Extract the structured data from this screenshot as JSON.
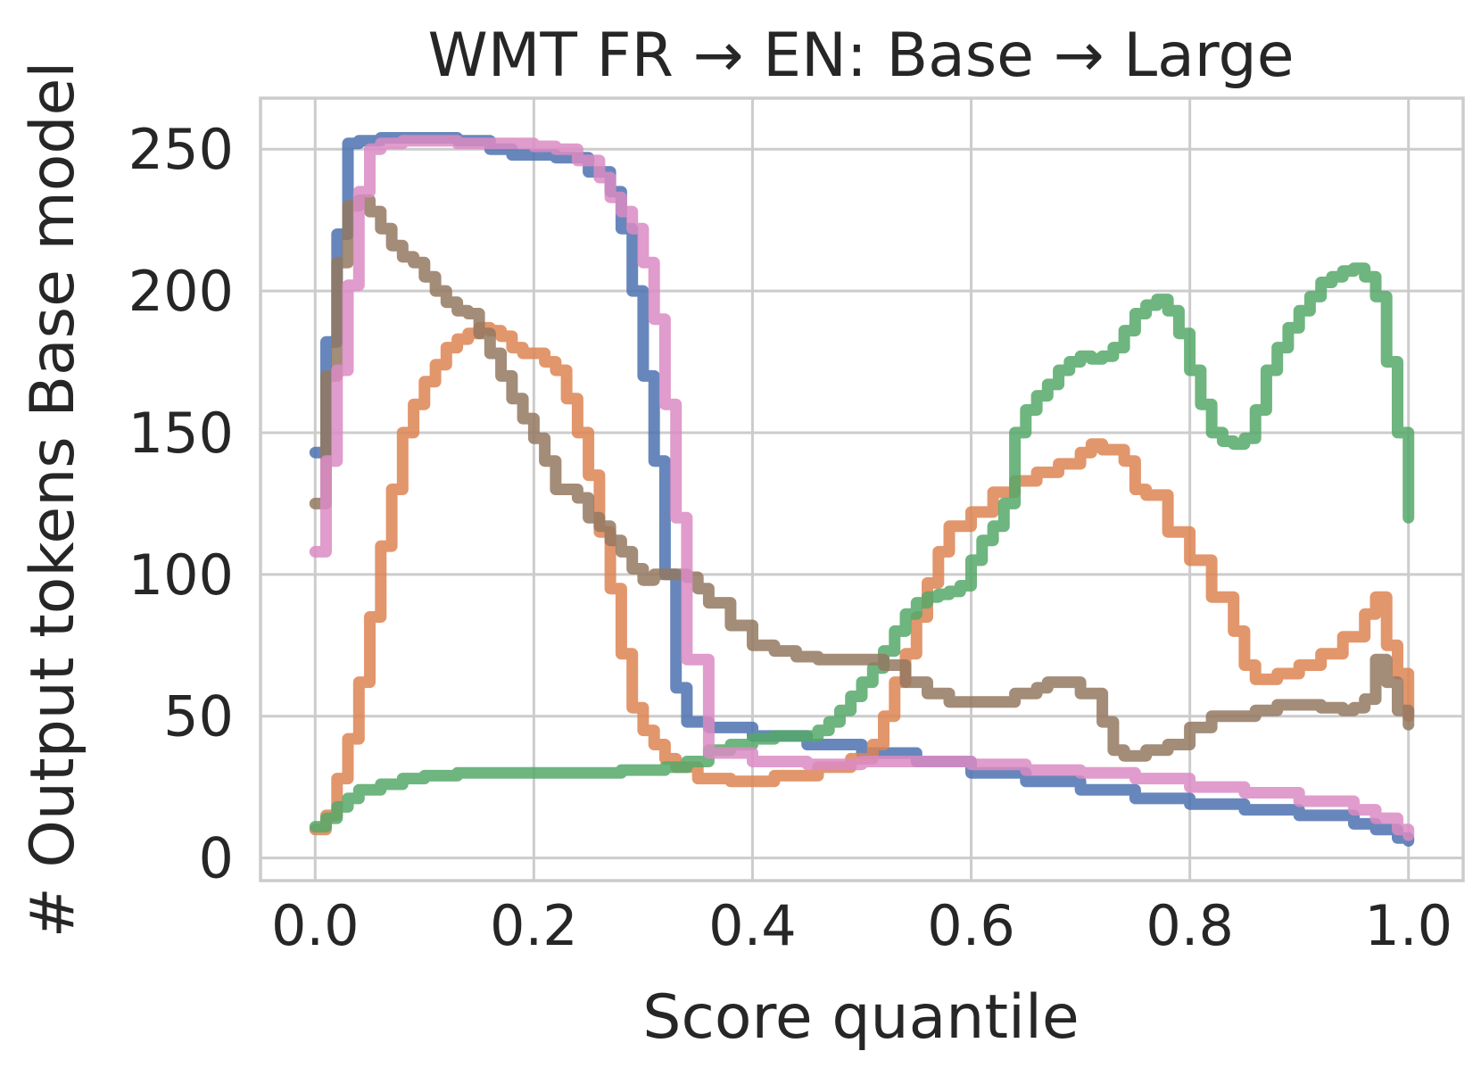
{
  "chart_data": {
    "type": "line",
    "title": "WMT FR → EN:  Base → Large",
    "xlabel": "Score quantile",
    "ylabel": "# Output tokens Base model",
    "xlim": [
      -0.05,
      1.05
    ],
    "ylim": [
      -8,
      268
    ],
    "xticks": [
      0.0,
      0.2,
      0.4,
      0.6,
      0.8,
      1.0
    ],
    "xtick_labels": [
      "0.0",
      "0.2",
      "0.4",
      "0.6",
      "0.8",
      "1.0"
    ],
    "yticks": [
      0,
      50,
      100,
      150,
      200,
      250
    ],
    "ytick_labels": [
      "0",
      "50",
      "100",
      "150",
      "200",
      "250"
    ],
    "grid": true,
    "legend": "none",
    "series": [
      {
        "color": "#4c72b0",
        "x": [
          0.0,
          0.01,
          0.02,
          0.03,
          0.04,
          0.06,
          0.08,
          0.1,
          0.13,
          0.16,
          0.18,
          0.2,
          0.22,
          0.25,
          0.27,
          0.28,
          0.29,
          0.3,
          0.31,
          0.32,
          0.33,
          0.34,
          0.36,
          0.4,
          0.45,
          0.5,
          0.55,
          0.6,
          0.65,
          0.7,
          0.75,
          0.8,
          0.85,
          0.9,
          0.95,
          0.97,
          0.99,
          1.0
        ],
        "y": [
          143,
          182,
          220,
          252,
          253,
          254,
          254,
          254,
          253,
          250,
          248,
          248,
          247,
          242,
          235,
          222,
          200,
          170,
          140,
          100,
          60,
          48,
          46,
          43,
          40,
          37,
          34,
          30,
          27,
          24,
          21,
          19,
          17,
          15,
          12,
          10,
          7,
          6
        ]
      },
      {
        "color": "#dd8452",
        "x": [
          0.0,
          0.01,
          0.02,
          0.03,
          0.04,
          0.05,
          0.06,
          0.07,
          0.08,
          0.09,
          0.1,
          0.11,
          0.12,
          0.13,
          0.14,
          0.15,
          0.16,
          0.17,
          0.18,
          0.19,
          0.2,
          0.21,
          0.22,
          0.23,
          0.24,
          0.25,
          0.26,
          0.27,
          0.28,
          0.29,
          0.3,
          0.31,
          0.32,
          0.33,
          0.35,
          0.38,
          0.42,
          0.46,
          0.49,
          0.51,
          0.52,
          0.53,
          0.54,
          0.55,
          0.56,
          0.57,
          0.58,
          0.6,
          0.62,
          0.64,
          0.66,
          0.68,
          0.7,
          0.71,
          0.72,
          0.74,
          0.75,
          0.76,
          0.78,
          0.8,
          0.82,
          0.84,
          0.85,
          0.86,
          0.88,
          0.9,
          0.92,
          0.94,
          0.96,
          0.97,
          0.98,
          0.99,
          1.0
        ],
        "y": [
          10,
          15,
          28,
          42,
          62,
          85,
          110,
          130,
          150,
          160,
          168,
          174,
          180,
          183,
          185,
          187,
          186,
          184,
          180,
          178,
          178,
          175,
          172,
          162,
          150,
          135,
          115,
          95,
          72,
          53,
          45,
          40,
          35,
          32,
          28,
          27,
          29,
          32,
          35,
          40,
          50,
          62,
          72,
          85,
          97,
          108,
          117,
          122,
          129,
          133,
          136,
          139,
          143,
          146,
          144,
          140,
          130,
          128,
          115,
          105,
          92,
          80,
          68,
          63,
          65,
          68,
          72,
          78,
          86,
          92,
          75,
          65,
          50
        ]
      },
      {
        "color": "#55a868",
        "x": [
          0.0,
          0.01,
          0.02,
          0.03,
          0.04,
          0.06,
          0.08,
          0.1,
          0.13,
          0.15,
          0.17,
          0.2,
          0.23,
          0.26,
          0.28,
          0.3,
          0.32,
          0.34,
          0.36,
          0.38,
          0.4,
          0.42,
          0.44,
          0.46,
          0.47,
          0.48,
          0.49,
          0.5,
          0.51,
          0.52,
          0.53,
          0.54,
          0.55,
          0.56,
          0.57,
          0.58,
          0.59,
          0.6,
          0.61,
          0.62,
          0.63,
          0.64,
          0.65,
          0.66,
          0.67,
          0.68,
          0.69,
          0.7,
          0.71,
          0.72,
          0.73,
          0.74,
          0.75,
          0.76,
          0.77,
          0.78,
          0.79,
          0.8,
          0.81,
          0.82,
          0.83,
          0.84,
          0.85,
          0.86,
          0.87,
          0.88,
          0.89,
          0.9,
          0.91,
          0.92,
          0.93,
          0.94,
          0.95,
          0.96,
          0.97,
          0.98,
          0.99,
          1.0
        ],
        "y": [
          11,
          14,
          18,
          21,
          24,
          26,
          28,
          29,
          30,
          30,
          30,
          30,
          30,
          30,
          31,
          31,
          32,
          34,
          38,
          40,
          42,
          43,
          43,
          45,
          48,
          52,
          57,
          62,
          67,
          73,
          80,
          86,
          90,
          92,
          93,
          94,
          96,
          105,
          112,
          117,
          125,
          150,
          158,
          163,
          167,
          172,
          175,
          177,
          176,
          177,
          180,
          186,
          192,
          195,
          197,
          193,
          185,
          172,
          160,
          150,
          147,
          146,
          148,
          158,
          172,
          180,
          187,
          193,
          198,
          203,
          205,
          207,
          208,
          205,
          198,
          175,
          150,
          120
        ]
      },
      {
        "color": "#c44e52",
        "x": [],
        "y": []
      },
      {
        "color": "#8172b3",
        "x": [],
        "y": []
      },
      {
        "color": "#937860",
        "x": [
          0.0,
          0.01,
          0.02,
          0.03,
          0.04,
          0.05,
          0.06,
          0.07,
          0.08,
          0.09,
          0.1,
          0.11,
          0.12,
          0.13,
          0.14,
          0.15,
          0.16,
          0.17,
          0.18,
          0.19,
          0.2,
          0.21,
          0.22,
          0.23,
          0.24,
          0.25,
          0.26,
          0.27,
          0.28,
          0.29,
          0.3,
          0.31,
          0.32,
          0.33,
          0.34,
          0.35,
          0.36,
          0.38,
          0.4,
          0.42,
          0.44,
          0.46,
          0.48,
          0.5,
          0.52,
          0.54,
          0.56,
          0.58,
          0.6,
          0.62,
          0.64,
          0.66,
          0.67,
          0.68,
          0.7,
          0.72,
          0.73,
          0.74,
          0.76,
          0.78,
          0.8,
          0.82,
          0.84,
          0.86,
          0.88,
          0.9,
          0.92,
          0.94,
          0.95,
          0.96,
          0.97,
          0.98,
          0.99,
          1.0
        ],
        "y": [
          125,
          170,
          210,
          230,
          232,
          228,
          222,
          216,
          212,
          210,
          205,
          200,
          196,
          193,
          192,
          185,
          178,
          170,
          162,
          155,
          148,
          140,
          130,
          130,
          127,
          120,
          117,
          112,
          108,
          102,
          98,
          100,
          100,
          100,
          99,
          95,
          90,
          82,
          75,
          73,
          71,
          70,
          70,
          70,
          68,
          62,
          58,
          55,
          55,
          55,
          58,
          60,
          62,
          62,
          58,
          48,
          38,
          36,
          38,
          40,
          46,
          50,
          50,
          52,
          54,
          54,
          53,
          52,
          53,
          56,
          70,
          62,
          52,
          47
        ]
      },
      {
        "color": "#da8bc3",
        "x": [
          0.0,
          0.01,
          0.02,
          0.03,
          0.04,
          0.05,
          0.06,
          0.08,
          0.1,
          0.13,
          0.16,
          0.18,
          0.2,
          0.22,
          0.24,
          0.26,
          0.27,
          0.28,
          0.29,
          0.3,
          0.31,
          0.32,
          0.33,
          0.34,
          0.36,
          0.4,
          0.45,
          0.5,
          0.55,
          0.6,
          0.65,
          0.7,
          0.75,
          0.8,
          0.85,
          0.9,
          0.95,
          0.97,
          0.99,
          1.0
        ],
        "y": [
          108,
          140,
          172,
          202,
          235,
          250,
          252,
          253,
          253,
          252,
          252,
          252,
          251,
          250,
          246,
          240,
          233,
          228,
          222,
          210,
          190,
          160,
          120,
          70,
          37,
          34,
          33,
          34,
          34,
          33,
          31,
          30,
          28,
          25,
          23,
          20,
          17,
          14,
          10,
          8
        ]
      }
    ]
  }
}
